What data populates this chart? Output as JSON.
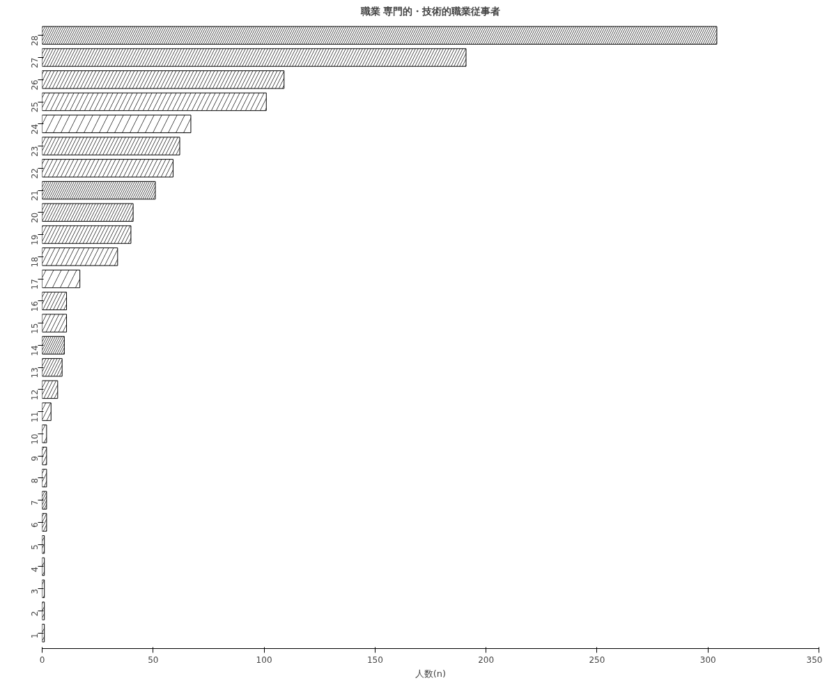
{
  "chart_data": {
    "type": "bar",
    "orientation": "horizontal",
    "title": "職業 専門的・技術的職業従事者",
    "xlabel": "人数(n)",
    "categories": [
      "28",
      "27",
      "26",
      "25",
      "24",
      "23",
      "22",
      "21",
      "20",
      "19",
      "18",
      "17",
      "16",
      "15",
      "14",
      "13",
      "12",
      "11",
      "10",
      "9",
      "8",
      "7",
      "6",
      "5",
      "4",
      "3",
      "2",
      "1"
    ],
    "values": [
      304,
      191,
      109,
      101,
      67,
      62,
      59,
      51,
      41,
      40,
      34,
      17,
      11,
      11,
      10,
      9,
      7,
      4,
      2,
      2,
      2,
      2,
      2,
      1,
      1,
      1,
      1,
      1
    ],
    "color": "#ffffff",
    "xlim": [
      0,
      350
    ],
    "xticks": [
      0,
      50,
      100,
      150,
      200,
      250,
      300,
      350
    ],
    "grid": false
  }
}
